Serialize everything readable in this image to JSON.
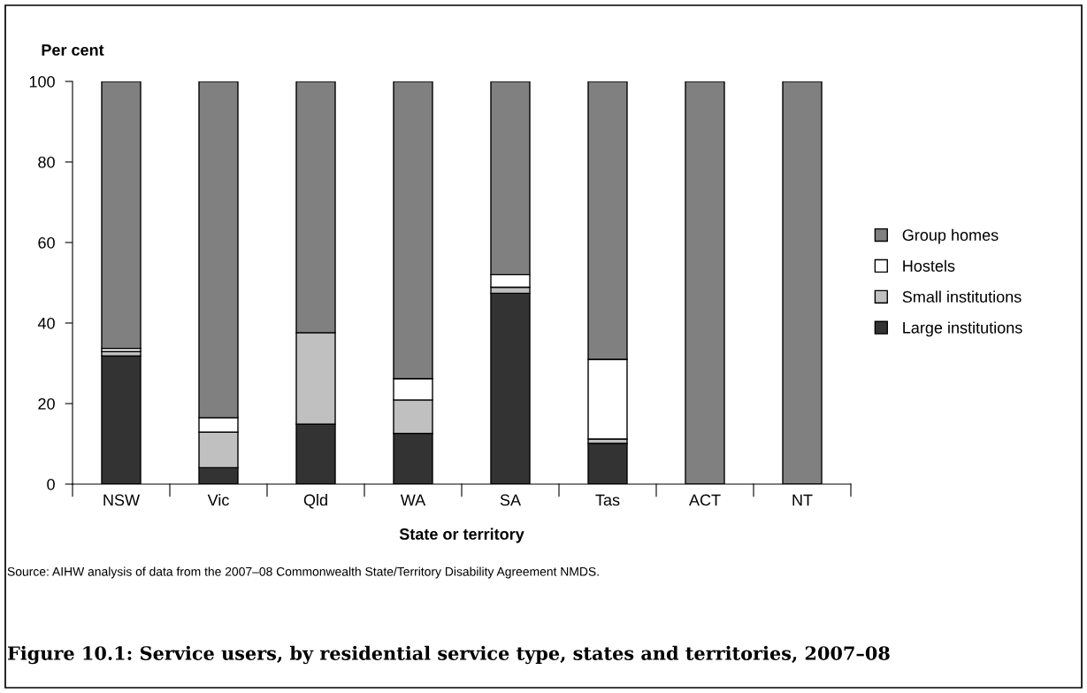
{
  "chart_data": {
    "type": "bar",
    "stacked": true,
    "title": "Figure 10.1: Service users, by residential service type, states and territories, 2007–08",
    "ylabel": "Per cent",
    "xlabel": "State or territory",
    "annotations": [
      "Source: AIHW analysis of data from the 2007–08 Commonwealth State/Territory Disability Agreement NMDS."
    ],
    "categories": [
      "NSW",
      "Vic",
      "Qld",
      "WA",
      "SA",
      "Tas",
      "ACT",
      "NT"
    ],
    "series": [
      {
        "name": "Large institutions",
        "color": "#333333",
        "values": [
          31.8,
          4.1,
          14.9,
          12.6,
          47.4,
          10.1,
          null,
          null
        ]
      },
      {
        "name": "Small institutions",
        "color": "#c0c0c0",
        "values": [
          1.1,
          8.8,
          22.7,
          8.3,
          1.5,
          1.1,
          null,
          null
        ]
      },
      {
        "name": "Hostels",
        "color": "#ffffff",
        "values": [
          0.8,
          3.6,
          null,
          5.3,
          3.1,
          19.8,
          null,
          null
        ]
      },
      {
        "name": "Group homes",
        "color": "#808080",
        "values": [
          66.3,
          83.5,
          62.4,
          73.8,
          48.0,
          69.0,
          100,
          100
        ]
      }
    ],
    "ylim": [
      0,
      100
    ],
    "yticks": [
      0,
      20,
      40,
      60,
      80,
      100
    ],
    "grid": false,
    "legend": "right"
  }
}
